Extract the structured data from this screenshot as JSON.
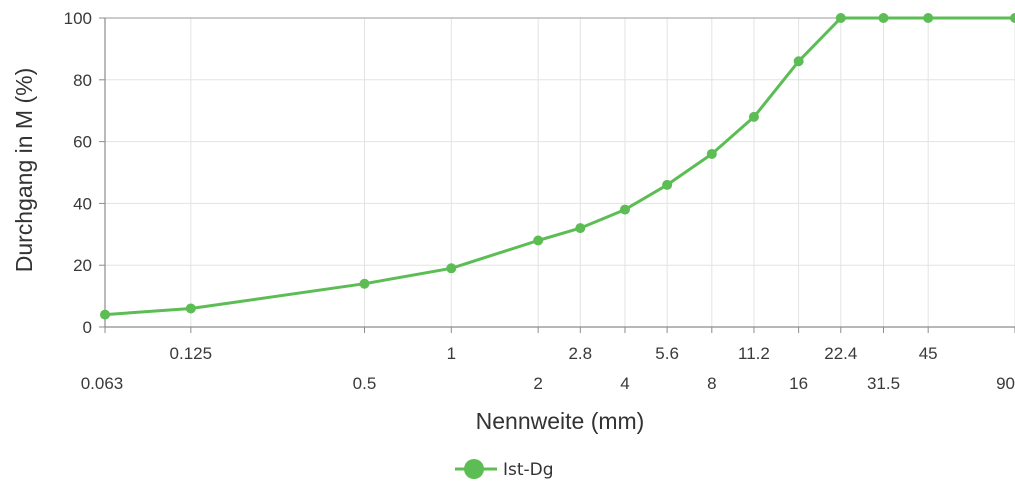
{
  "chart_data": {
    "type": "line",
    "scale_x": "log",
    "xlabel": "Nennweite (mm)",
    "ylabel": "Durchgang in M (%)",
    "ylim": [
      0,
      100
    ],
    "y_ticks": [
      "0",
      "20",
      "40",
      "60",
      "80",
      "100"
    ],
    "x_ticks_row1": [
      "0.125",
      "1",
      "2.8",
      "5.6",
      "11.2",
      "22.4",
      "45"
    ],
    "x_ticks_row2": [
      "0.063",
      "0.5",
      "2",
      "4",
      "8",
      "16",
      "31.5",
      "90"
    ],
    "x_tick_values": [
      0.063,
      0.125,
      0.5,
      1,
      2,
      2.8,
      4,
      5.6,
      8,
      11.2,
      16,
      22.4,
      31.5,
      45,
      90
    ],
    "grid": true,
    "legend_position": "bottom",
    "series": [
      {
        "name": "Ist-Dg",
        "color": "#5cbd54",
        "x": [
          0.063,
          0.125,
          0.5,
          1,
          2,
          2.8,
          4,
          5.6,
          8,
          11.2,
          16,
          22.4,
          31.5,
          45,
          90
        ],
        "y": [
          4,
          6,
          14,
          19,
          28,
          32,
          38,
          46,
          56,
          68,
          86,
          100,
          100,
          100,
          100
        ]
      }
    ]
  }
}
